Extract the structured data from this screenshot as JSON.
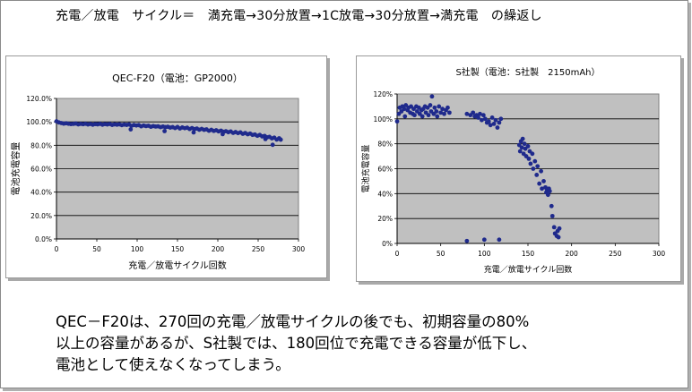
{
  "heading": "充電／放電　サイクル＝　満充電→30分放置→1C放電→30分放置→満充電　の繰返し",
  "caption": [
    "QEC－F20は、270回の充電／放電サイクルの後でも、初期容量の80%",
    "以上の容量があるが、S社製では、180回位で充電できる容量が低下し、",
    "電池として使えなくなってしまう。"
  ],
  "colors": {
    "plot_bg": "#c0c0c0",
    "marker": "#1f2a8c",
    "grid": "#000000"
  },
  "chart_data": [
    {
      "type": "scatter",
      "title": "QEC-F20（電池：GP2000）",
      "xlabel": "充電／放電サイクル回数",
      "ylabel": "電池充電容量",
      "xlim": [
        0,
        300
      ],
      "ylim": [
        0,
        120
      ],
      "xticks": [
        "0",
        "50",
        "100",
        "150",
        "200",
        "250",
        "300"
      ],
      "yticks": [
        "0.0%",
        "20.0%",
        "40.0%",
        "60.0%",
        "80.0%",
        "100.0%",
        "120.0%"
      ],
      "grid": true,
      "series": [
        {
          "x": [
            0,
            3,
            6,
            9,
            12,
            15,
            18,
            21,
            24,
            27,
            30,
            33,
            36,
            39,
            42,
            45,
            48,
            51,
            54,
            57,
            60,
            63,
            66,
            69,
            72,
            75,
            78,
            81,
            84,
            87,
            90,
            93,
            96,
            99,
            102,
            105,
            108,
            111,
            114,
            117,
            120,
            123,
            126,
            129,
            132,
            135,
            138,
            141,
            144,
            147,
            150,
            153,
            156,
            159,
            162,
            165,
            168,
            171,
            174,
            177,
            180,
            183,
            186,
            189,
            192,
            195,
            198,
            201,
            204,
            207,
            210,
            213,
            216,
            219,
            222,
            225,
            228,
            231,
            234,
            237,
            240,
            243,
            246,
            249,
            252,
            255,
            258,
            261,
            264,
            267,
            270,
            273,
            276,
            278,
            92,
            134,
            170,
            206,
            259,
            268
          ],
          "y": [
            100.5,
            99.5,
            99,
            98.5,
            98.8,
            98.4,
            98.1,
            98.3,
            98.6,
            97.9,
            98.3,
            98,
            98.4,
            97.8,
            98.2,
            97.6,
            98.1,
            97.9,
            98.3,
            97.6,
            98.1,
            97.8,
            98.2,
            97.4,
            97.9,
            97.6,
            97.9,
            97.2,
            97.7,
            97.4,
            97.8,
            96.6,
            97.3,
            96.9,
            97.2,
            96.2,
            96.9,
            96.4,
            96.7,
            95.8,
            96.4,
            96,
            96.2,
            95.5,
            96,
            95.5,
            95.8,
            95.1,
            95.5,
            94.7,
            95.6,
            94.4,
            95.2,
            94.6,
            95,
            93.9,
            94.7,
            93.8,
            94.3,
            93.3,
            94,
            93.2,
            93.6,
            92.4,
            93.2,
            92.3,
            92.8,
            91.9,
            92.5,
            91.5,
            92,
            91.2,
            91.8,
            90.6,
            91.3,
            90.4,
            91,
            89.8,
            90.5,
            89.4,
            90,
            88.9,
            89.2,
            88.1,
            88.8,
            87.6,
            88,
            86.8,
            87.2,
            85.9,
            86.5,
            84.9,
            86,
            84.8,
            93.6,
            92.1,
            91,
            89.5,
            85.3,
            80.4
          ]
        }
      ]
    },
    {
      "type": "scatter",
      "title": "S社製（電池：S社製　2150mAh）",
      "xlabel": "充電／放電サイクル回数",
      "ylabel": "電池充電容量",
      "xlim": [
        0,
        300
      ],
      "ylim": [
        0,
        120
      ],
      "xticks": [
        "0",
        "50",
        "100",
        "150",
        "200",
        "250",
        "300"
      ],
      "yticks": [
        "0%",
        "20%",
        "40%",
        "60%",
        "80%",
        "100%",
        "120%"
      ],
      "grid": true,
      "series": [
        {
          "x": [
            0,
            2,
            3,
            5,
            6,
            8,
            9,
            10,
            12,
            13,
            15,
            16,
            18,
            19,
            20,
            22,
            23,
            25,
            26,
            28,
            29,
            30,
            32,
            33,
            35,
            36,
            38,
            39,
            40,
            42,
            43,
            45,
            46,
            48,
            50,
            52,
            54,
            56,
            58,
            60,
            80,
            84,
            87,
            89,
            91,
            93,
            95,
            97,
            99,
            101,
            103,
            105,
            107,
            109,
            111,
            113,
            115,
            117,
            119,
            80,
            100,
            117,
            140,
            141,
            142,
            143,
            144,
            145,
            146,
            147,
            148,
            150,
            151,
            152,
            153,
            155,
            156,
            158,
            160,
            161,
            163,
            165,
            166,
            168,
            170,
            171,
            172,
            173,
            174,
            175,
            177,
            178,
            180,
            181,
            183,
            184,
            185,
            186
          ],
          "y": [
            98,
            104,
            109,
            106,
            110,
            108,
            102,
            111,
            107,
            109,
            105,
            110,
            104,
            108,
            103,
            110,
            106,
            109,
            104,
            107,
            102,
            108,
            110,
            105,
            109,
            103,
            111,
            106,
            118,
            104,
            109,
            106,
            102,
            110,
            105,
            108,
            104,
            107,
            109,
            105,
            104,
            103,
            105,
            102,
            103,
            101,
            104,
            99,
            103,
            100,
            97,
            98,
            95,
            101,
            96,
            99,
            93,
            97,
            100,
            2,
            3,
            3,
            79,
            74,
            82,
            77,
            84,
            72,
            80,
            76,
            70,
            78,
            68,
            74,
            64,
            72,
            60,
            66,
            55,
            62,
            48,
            58,
            44,
            50,
            45,
            41,
            43,
            39,
            44,
            42,
            30,
            22,
            13,
            8,
            6,
            10,
            5,
            12
          ]
        }
      ]
    }
  ]
}
